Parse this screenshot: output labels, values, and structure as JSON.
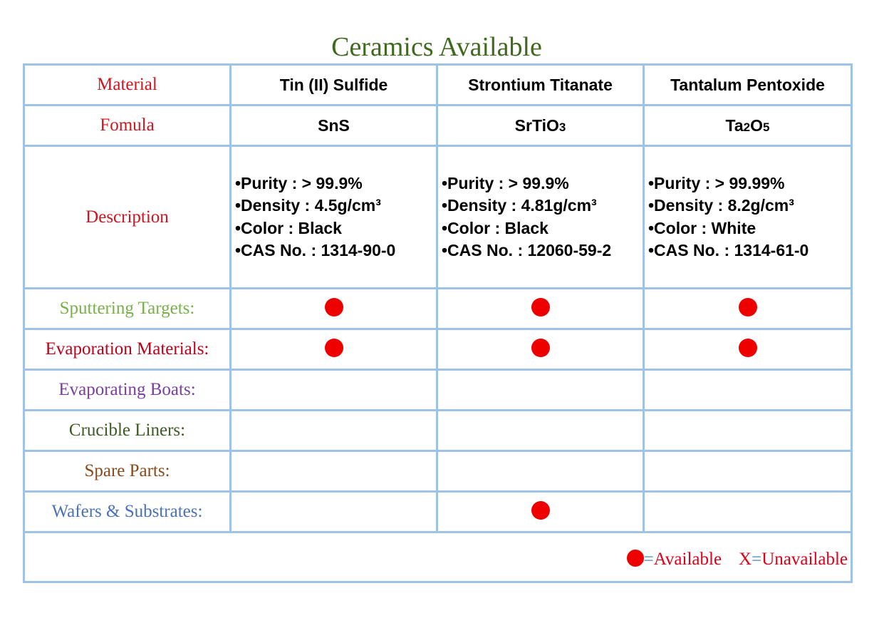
{
  "title": "Ceramics Available",
  "colors": {
    "border": "#9fc3e7",
    "title": "#3f6a1e",
    "available_dot": "#ee0000"
  },
  "table": {
    "material_label": "Material",
    "formula_label": "Fomula",
    "description_label": "Description",
    "materials": [
      {
        "name": "Tin (II) Sulfide",
        "formula_parts": [
          "SnS"
        ],
        "description": [
          "•Purity : > 99.9%",
          "•Density : 4.5g/cm³",
          "•Color : Black",
          "•CAS No. : 1314-90-0"
        ]
      },
      {
        "name": "Strontium Titanate",
        "formula_parts": [
          "SrTiO",
          "3"
        ],
        "description": [
          "•Purity : > 99.9%",
          "•Density : 4.81g/cm³",
          "•Color : Black",
          "•CAS No. : 12060-59-2"
        ]
      },
      {
        "name": "Tantalum Pentoxide",
        "formula_parts": [
          "Ta",
          "2",
          "O",
          "5"
        ],
        "description": [
          "•Purity : > 99.99%",
          "•Density : 8.2g/cm³",
          "•Color : White",
          "•CAS No. : 1314-61-0"
        ]
      }
    ],
    "availability_rows": [
      {
        "label": "Sputtering Targets:",
        "color": "#78b04a",
        "available": [
          true,
          true,
          true
        ]
      },
      {
        "label": "Evaporation Materials:",
        "color": "#c00018",
        "available": [
          true,
          true,
          true
        ]
      },
      {
        "label": "Evaporating Boats:",
        "color": "#7b3ea0",
        "available": [
          false,
          false,
          false
        ]
      },
      {
        "label": "Crucible Liners:",
        "color": "#3e5b22",
        "available": [
          false,
          false,
          false
        ]
      },
      {
        "label": "Spare Parts:",
        "color": "#8a4a1c",
        "available": [
          false,
          false,
          false
        ]
      },
      {
        "label": "Wafers & Substrates:",
        "color": "#4a72b8",
        "available": [
          false,
          true,
          false
        ]
      }
    ]
  },
  "legend": {
    "available_text": "Available",
    "unavailable_symbol": "X",
    "unavailable_text": "Unavailable",
    "equals": "="
  }
}
